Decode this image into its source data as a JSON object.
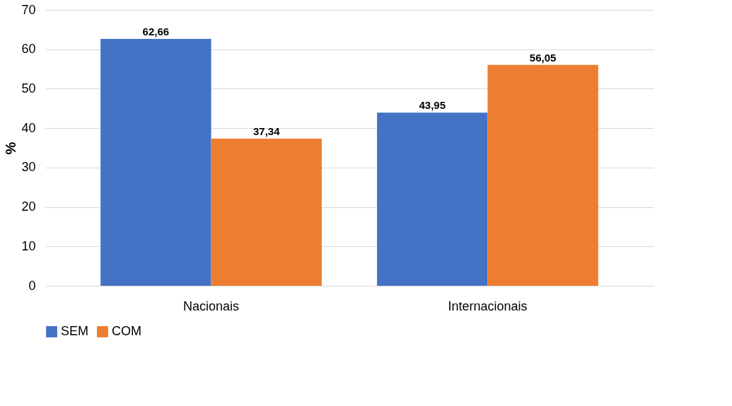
{
  "chart_data": {
    "type": "bar",
    "ylabel": "%",
    "categories": [
      "Nacionais",
      "Internacionais"
    ],
    "series": [
      {
        "name": "SEM",
        "color": "#4472c4",
        "values": [
          62.66,
          43.95
        ],
        "value_labels": [
          "62,66",
          "43,95"
        ]
      },
      {
        "name": "COM",
        "color": "#ed7d31",
        "values": [
          37.34,
          56.05
        ],
        "value_labels": [
          "37,34",
          "56,05"
        ]
      }
    ],
    "ylim": [
      0,
      70
    ],
    "yticks": [
      0,
      10,
      20,
      30,
      40,
      50,
      60,
      70
    ],
    "grid": "y",
    "legend": "bottom"
  }
}
